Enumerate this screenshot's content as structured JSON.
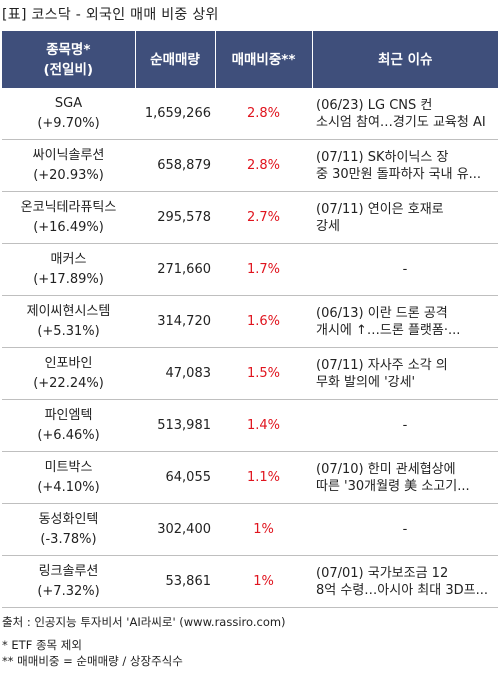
{
  "title": "[표] 코스닥 - 외국인 매매 비중 상위",
  "columns": {
    "name_line1": "종목명*",
    "name_line2": "(전일비)",
    "volume": "순매매량",
    "ratio": "매매비중**",
    "issue": "최근 이슈"
  },
  "rows": [
    {
      "name": "SGA",
      "change": "(+9.70%)",
      "volume": "1,659,266",
      "ratio": "2.8%",
      "issue1": "(06/23) LG CNS 컨",
      "issue2": "소시엄 참여…경기도 교육청 AI"
    },
    {
      "name": "싸이닉솔루션",
      "change": "(+20.93%)",
      "volume": "658,879",
      "ratio": "2.8%",
      "issue1": "(07/11) SK하이닉스 장",
      "issue2": "중 30만원 돌파하자 국내 유..."
    },
    {
      "name": "온코닉테라퓨틱스",
      "change": "(+16.49%)",
      "volume": "295,578",
      "ratio": "2.7%",
      "issue1": "(07/11) 연이은 호재로",
      "issue2": "강세"
    },
    {
      "name": "매커스",
      "change": "(+17.89%)",
      "volume": "271,660",
      "ratio": "1.7%",
      "issue1": "-",
      "issue2": ""
    },
    {
      "name": "제이씨현시스템",
      "change": "(+5.31%)",
      "volume": "314,720",
      "ratio": "1.6%",
      "issue1": "(06/13) 이란 드론 공격",
      "issue2": "개시에 ↑…드론 플랫폼·..."
    },
    {
      "name": "인포바인",
      "change": "(+22.24%)",
      "volume": "47,083",
      "ratio": "1.5%",
      "issue1": "(07/11) 자사주 소각 의",
      "issue2": "무화 발의에 '강세'"
    },
    {
      "name": "파인엠텍",
      "change": "(+6.46%)",
      "volume": "513,981",
      "ratio": "1.4%",
      "issue1": "-",
      "issue2": ""
    },
    {
      "name": "미트박스",
      "change": "(+4.10%)",
      "volume": "64,055",
      "ratio": "1.1%",
      "issue1": "(07/10) 한미 관세협상에",
      "issue2": "따른 '30개월령 美 소고기..."
    },
    {
      "name": "동성화인텍",
      "change": "(-3.78%)",
      "volume": "302,400",
      "ratio": "1%",
      "issue1": "-",
      "issue2": ""
    },
    {
      "name": "링크솔루션",
      "change": "(+7.32%)",
      "volume": "53,861",
      "ratio": "1%",
      "issue1": "(07/01) 국가보조금 12",
      "issue2": "8억 수령…아시아 최대 3D프..."
    }
  ],
  "footer": {
    "source": "출처 : 인공지능 투자비서 'AI라씨로' (www.rassiro.com)",
    "note1": "* ETF 종목 제외",
    "note2": "** 매매비중 = 순매매량 / 상장주식수"
  },
  "colors": {
    "header_bg": "#3f4f7b",
    "header_text": "#ffffff",
    "ratio_text": "#e0141e"
  }
}
